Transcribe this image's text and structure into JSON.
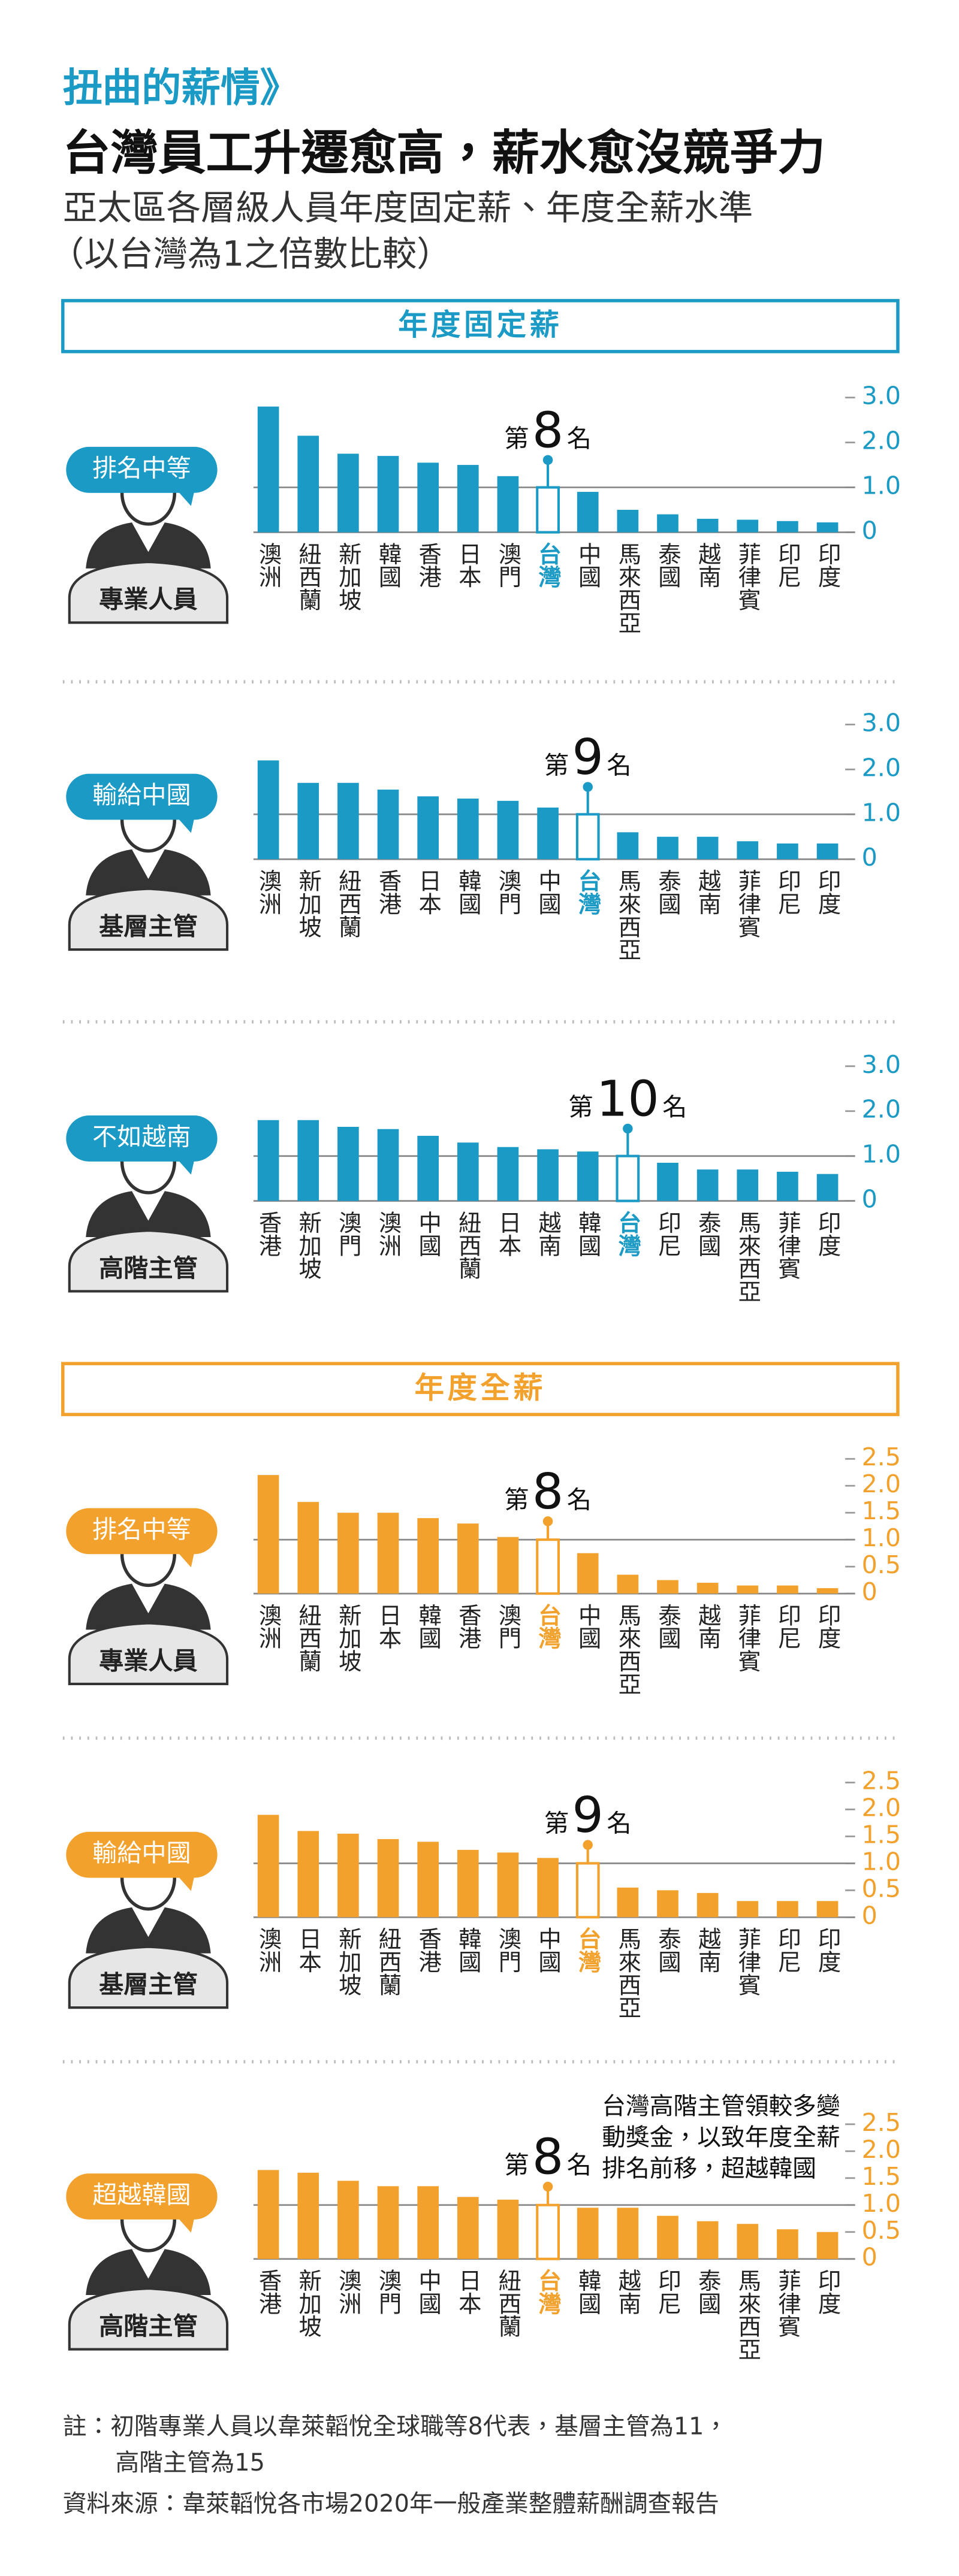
{
  "header": {
    "kicker": "扭曲的薪情》",
    "title": "台灣員工升遷愈高，薪水愈沒競爭力",
    "subtitle": [
      "亞太區各層級人員年度固定薪、年度全薪水準",
      "（以台灣為1之倍數比較）"
    ]
  },
  "sections": [
    {
      "title": "年度固定薪",
      "color": "#1a9ac4"
    },
    {
      "title": "年度全薪",
      "color": "#f2a12c"
    }
  ],
  "chart_data": [
    {
      "type": "bar",
      "badge": "排名中等",
      "role": "專業人員",
      "color": "#1a9ac4",
      "highlight": 7,
      "rank": {
        "prefix": "第",
        "value": 8,
        "suffix": "名"
      },
      "categories": [
        "澳洲",
        "紐西蘭",
        "新加坡",
        "韓國",
        "香港",
        "日本",
        "澳門",
        "台灣",
        "中國",
        "馬來西亞",
        "泰國",
        "越南",
        "菲律賓",
        "印尼",
        "印度"
      ],
      "values": [
        2.8,
        2.15,
        1.75,
        1.7,
        1.55,
        1.5,
        1.25,
        1,
        0.9,
        0.5,
        0.4,
        0.3,
        0.28,
        0.25,
        0.22
      ],
      "refline": 1,
      "ylim": [
        0,
        3
      ],
      "yticks": [
        0,
        {
          "value": 1,
          "label": "1.0"
        },
        {
          "value": 2,
          "label": "2.0"
        },
        {
          "value": 3,
          "label": "3.0"
        }
      ]
    },
    {
      "type": "bar",
      "badge": "輸給中國",
      "role": "基層主管",
      "color": "#1a9ac4",
      "highlight": 8,
      "rank": {
        "prefix": "第",
        "value": 9,
        "suffix": "名"
      },
      "categories": [
        "澳洲",
        "新加坡",
        "紐西蘭",
        "香港",
        "日本",
        "韓國",
        "澳門",
        "中國",
        "台灣",
        "馬來西亞",
        "泰國",
        "越南",
        "菲律賓",
        "印尼",
        "印度"
      ],
      "values": [
        2.2,
        1.7,
        1.7,
        1.55,
        1.4,
        1.35,
        1.3,
        1.15,
        1,
        0.6,
        0.5,
        0.5,
        0.4,
        0.35,
        0.35
      ],
      "refline": 1,
      "ylim": [
        0,
        3
      ],
      "yticks": [
        0,
        {
          "value": 1,
          "label": "1.0"
        },
        {
          "value": 2,
          "label": "2.0"
        },
        {
          "value": 3,
          "label": "3.0"
        }
      ]
    },
    {
      "type": "bar",
      "badge": "不如越南",
      "role": "高階主管",
      "color": "#1a9ac4",
      "highlight": 9,
      "rank": {
        "prefix": "第",
        "value": 10,
        "suffix": "名"
      },
      "categories": [
        "香港",
        "新加坡",
        "澳門",
        "澳洲",
        "中國",
        "紐西蘭",
        "日本",
        "越南",
        "韓國",
        "台灣",
        "印尼",
        "泰國",
        "馬來西亞",
        "菲律賓",
        "印度"
      ],
      "values": [
        1.8,
        1.8,
        1.65,
        1.6,
        1.45,
        1.3,
        1.2,
        1.15,
        1.1,
        1,
        0.85,
        0.7,
        0.7,
        0.65,
        0.6
      ],
      "refline": 1,
      "ylim": [
        0,
        3
      ],
      "yticks": [
        0,
        {
          "value": 1,
          "label": "1.0"
        },
        {
          "value": 2,
          "label": "2.0"
        },
        {
          "value": 3,
          "label": "3.0"
        }
      ]
    },
    {
      "type": "bar",
      "badge": "排名中等",
      "role": "專業人員",
      "color": "#f2a12c",
      "highlight": 7,
      "rank": {
        "prefix": "第",
        "value": 8,
        "suffix": "名"
      },
      "categories": [
        "澳洲",
        "紐西蘭",
        "新加坡",
        "日本",
        "韓國",
        "香港",
        "澳門",
        "台灣",
        "中國",
        "馬來西亞",
        "泰國",
        "越南",
        "菲律賓",
        "印尼",
        "印度"
      ],
      "values": [
        2.2,
        1.7,
        1.5,
        1.5,
        1.4,
        1.3,
        1.05,
        1,
        0.75,
        0.35,
        0.25,
        0.2,
        0.15,
        0.15,
        0.1
      ],
      "refline": 1,
      "ylim": [
        0,
        2.5
      ],
      "yticks": [
        0,
        0.5,
        {
          "value": 1,
          "label": "1.0"
        },
        1.5,
        {
          "value": 2,
          "label": "2.0"
        },
        2.5
      ]
    },
    {
      "type": "bar",
      "badge": "輸給中國",
      "role": "基層主管",
      "color": "#f2a12c",
      "highlight": 8,
      "rank": {
        "prefix": "第",
        "value": 9,
        "suffix": "名"
      },
      "categories": [
        "澳洲",
        "日本",
        "新加坡",
        "紐西蘭",
        "香港",
        "韓國",
        "澳門",
        "中國",
        "台灣",
        "馬來西亞",
        "泰國",
        "越南",
        "菲律賓",
        "印尼",
        "印度"
      ],
      "values": [
        1.9,
        1.6,
        1.55,
        1.45,
        1.4,
        1.25,
        1.2,
        1.1,
        1,
        0.55,
        0.5,
        0.45,
        0.3,
        0.3,
        0.3
      ],
      "refline": 1,
      "ylim": [
        0,
        2.5
      ],
      "yticks": [
        0,
        0.5,
        {
          "value": 1,
          "label": "1.0"
        },
        1.5,
        {
          "value": 2,
          "label": "2.0"
        },
        2.5
      ]
    },
    {
      "type": "bar",
      "badge": "超越韓國",
      "role": "高階主管",
      "color": "#f2a12c",
      "highlight": 7,
      "rank": {
        "prefix": "第",
        "value": 8,
        "suffix": "名"
      },
      "annotation": [
        "台灣高階主管領較多變",
        "動獎金，以致年度全薪",
        "排名前移，超越韓國"
      ],
      "categories": [
        "香港",
        "新加坡",
        "澳洲",
        "澳門",
        "中國",
        "日本",
        "紐西蘭",
        "台灣",
        "韓國",
        "越南",
        "印尼",
        "泰國",
        "馬來西亞",
        "菲律賓",
        "印度"
      ],
      "values": [
        1.65,
        1.6,
        1.45,
        1.35,
        1.35,
        1.15,
        1.1,
        1,
        0.95,
        0.95,
        0.8,
        0.7,
        0.65,
        0.55,
        0.5
      ],
      "refline": 1,
      "ylim": [
        0,
        2.5
      ],
      "yticks": [
        0,
        0.5,
        {
          "value": 1,
          "label": "1.0"
        },
        1.5,
        {
          "value": 2,
          "label": "2.0"
        },
        2.5
      ]
    }
  ],
  "footer": {
    "notes": [
      "註：初階專業人員以韋萊韜悅全球職等8代表，基層主管為11，",
      "高階主管為15"
    ],
    "source": "資料來源：韋萊韜悅各市場2020年一般產業整體薪酬調查報告"
  }
}
